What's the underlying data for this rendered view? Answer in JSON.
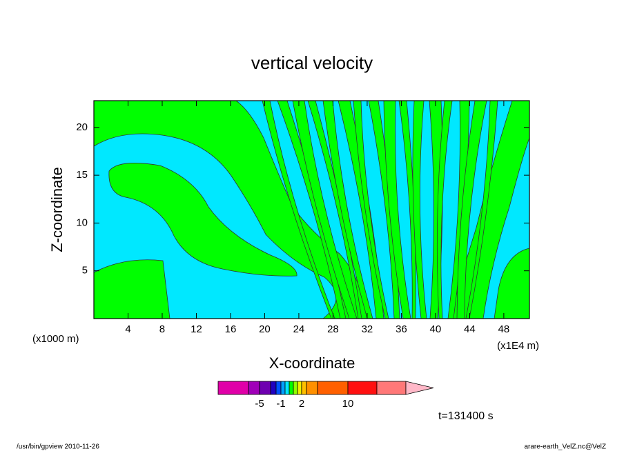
{
  "chart_data": {
    "type": "contour",
    "title": "vertical velocity",
    "x_label": "X-coordinate",
    "y_label": "Z-coordinate",
    "x_unit_left": "(x1000 m)",
    "x_unit_right": "(x1E4 m)",
    "xlim": [
      0,
      51
    ],
    "xticks": [
      4,
      8,
      12,
      16,
      20,
      24,
      28,
      32,
      36,
      40,
      44,
      48
    ],
    "ylim": [
      0,
      22.8
    ],
    "yticks": [
      5,
      10,
      15,
      20
    ],
    "field_colors": [
      "#00e8ff",
      "#00ff00"
    ],
    "colorbar": {
      "colors": [
        "#e000a8",
        "#a000b8",
        "#6e00b0",
        "#2000c0",
        "#0050ff",
        "#00a0ff",
        "#00e8ff",
        "#00ff00",
        "#90ff00",
        "#f0f000",
        "#ffc000",
        "#ff9000",
        "#ff6000",
        "#ff1010",
        "#ff7878"
      ],
      "ticks": [
        -5,
        -1,
        2,
        10
      ]
    },
    "time_label": "t=131400 s",
    "footer_left": "/usr/bin/gpview  2010-11-26",
    "footer_right": "arare-earth_VelZ.nc@VelZ"
  }
}
